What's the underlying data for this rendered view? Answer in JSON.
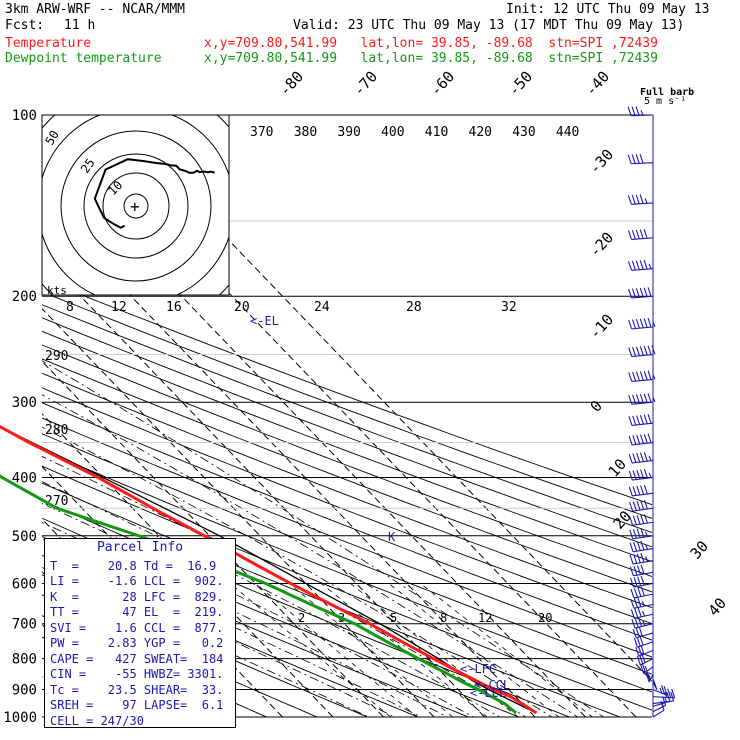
{
  "header": {
    "model": "3km ARW-WRF -- NCAR/MMM",
    "init": "Init: 12 UTC Thu 09 May 13",
    "fcst_label": "Fcst:",
    "fcst_value": "11 h",
    "valid": "Valid: 23 UTC Thu 09 May 13 (17 MDT Thu 09 May 13)",
    "temp_label": "Temperature",
    "temp_loc": "x,y=709.80,541.99   lat,lon= 39.85, -89.68  stn=SPI ,72439",
    "dew_label": "Dewpoint temperature",
    "dew_loc": "x,y=709.80,541.99   lat,lon= 39.85, -89.68  stn=SPI ,72439"
  },
  "parcel_info": {
    "title": "Parcel Info",
    "rows": [
      "T  =    20.8 Td =  16.9",
      "LI =    -1.6 LCL =  902.",
      "K  =      28 LFC =  829.",
      "TT =      47 EL  =  219.",
      "SVI =    1.6 CCL =  877.",
      "PW =    2.83 YGP =   0.2",
      "CAPE =   427 SWEAT=  184",
      "CIN =    -55 HWBZ= 3301.",
      "Tc =    23.5 SHEAR=  33.",
      "SREH =    97 LAPSE=  6.1",
      "CELL = 247/30"
    ]
  },
  "annotations": {
    "el": "<-EL",
    "lfc": "<-LFC",
    "ccl": "<-CCL",
    "lcl": "<-LCL",
    "k_marker": "K",
    "full_barb": "Full barb",
    "full_barb_unit": "5 m s⁻¹",
    "hodo_unit": "kts"
  },
  "colors": {
    "temperature": "#ff1a1a",
    "dewpoint": "#129a12",
    "parcel": "#000000",
    "wind": "#1a1ab0",
    "mixing_ratio": "#000000"
  },
  "chart_data": {
    "type": "line",
    "title": "",
    "y_axis": {
      "label": "",
      "scale": "log-pressure",
      "range_hpa": [
        1000,
        100
      ],
      "ticks": [
        100,
        200,
        300,
        400,
        500,
        600,
        700,
        800,
        900,
        1000
      ]
    },
    "isotherm_labels_c": [
      -80,
      -70,
      -60,
      -50,
      -40,
      -30,
      -20,
      -10,
      0,
      10,
      20,
      30,
      40
    ],
    "theta_labels_k": [
      370,
      380,
      390,
      400,
      410,
      420,
      430,
      440
    ],
    "theta_left_labels_k": [
      290,
      280,
      270
    ],
    "mixing_ratio_labels": [
      2,
      3,
      5,
      8,
      12,
      20
    ],
    "hodograph_speed_labels": [
      8,
      12,
      16,
      20,
      24,
      28,
      32
    ],
    "hodograph_ring_labels": [
      50,
      25,
      10
    ],
    "series": [
      {
        "name": "Temperature",
        "units": "C",
        "points": [
          [
            985,
            21
          ],
          [
            950,
            20
          ],
          [
            925,
            19
          ],
          [
            900,
            17
          ],
          [
            850,
            14
          ],
          [
            800,
            11
          ],
          [
            750,
            8
          ],
          [
            700,
            5
          ],
          [
            650,
            1
          ],
          [
            600,
            -3
          ],
          [
            550,
            -7
          ],
          [
            500,
            -11
          ],
          [
            450,
            -16
          ],
          [
            400,
            -21
          ],
          [
            350,
            -28
          ],
          [
            300,
            -35
          ],
          [
            250,
            -44
          ],
          [
            220,
            -49
          ],
          [
            205,
            -52
          ],
          [
            200,
            -53
          ],
          [
            180,
            -57
          ],
          [
            150,
            -56
          ],
          [
            130,
            -52
          ],
          [
            115,
            -48
          ],
          [
            100,
            -44
          ]
        ]
      },
      {
        "name": "Dewpoint temperature",
        "units": "C",
        "points": [
          [
            985,
            17
          ],
          [
            950,
            16.5
          ],
          [
            900,
            14
          ],
          [
            870,
            12
          ],
          [
            850,
            11
          ],
          [
            800,
            8
          ],
          [
            750,
            5
          ],
          [
            700,
            2
          ],
          [
            650,
            -3
          ],
          [
            600,
            -8
          ],
          [
            550,
            -15
          ],
          [
            500,
            -24
          ],
          [
            450,
            -35
          ],
          [
            400,
            -40
          ],
          [
            350,
            -44
          ],
          [
            300,
            -46
          ],
          [
            250,
            -53
          ],
          [
            200,
            -60
          ],
          [
            150,
            -66
          ],
          [
            120,
            -65
          ],
          [
            100,
            -65
          ]
        ]
      }
    ],
    "parcel_path": {
      "name": "",
      "points": [
        [
          985,
          21
        ],
        [
          900,
          16
        ],
        [
          870,
          14.5
        ],
        [
          800,
          12
        ],
        [
          700,
          7
        ],
        [
          600,
          0
        ],
        [
          500,
          -8
        ],
        [
          400,
          -20
        ],
        [
          300,
          -36
        ],
        [
          250,
          -46
        ],
        [
          219,
          -53
        ]
      ]
    },
    "wind_profile_kt": [
      [
        1000,
        30,
        12
      ],
      [
        980,
        35,
        14
      ],
      [
        960,
        50,
        15
      ],
      [
        950,
        70,
        18
      ],
      [
        925,
        100,
        22
      ],
      [
        900,
        140,
        25
      ],
      [
        875,
        170,
        25
      ],
      [
        850,
        190,
        24
      ],
      [
        825,
        205,
        25
      ],
      [
        800,
        215,
        27
      ],
      [
        775,
        220,
        28
      ],
      [
        750,
        225,
        30
      ],
      [
        725,
        230,
        30
      ],
      [
        700,
        235,
        32
      ],
      [
        675,
        238,
        33
      ],
      [
        650,
        240,
        35
      ],
      [
        625,
        240,
        37
      ],
      [
        600,
        242,
        38
      ],
      [
        575,
        243,
        40
      ],
      [
        550,
        245,
        42
      ],
      [
        525,
        245,
        43
      ],
      [
        500,
        247,
        45
      ],
      [
        475,
        248,
        47
      ],
      [
        450,
        248,
        48
      ],
      [
        425,
        250,
        50
      ],
      [
        400,
        250,
        52
      ],
      [
        375,
        252,
        55
      ],
      [
        350,
        252,
        58
      ],
      [
        325,
        253,
        60
      ],
      [
        300,
        255,
        62
      ],
      [
        275,
        255,
        64
      ],
      [
        250,
        255,
        66
      ],
      [
        225,
        256,
        62
      ],
      [
        200,
        257,
        58
      ],
      [
        180,
        258,
        52
      ],
      [
        160,
        258,
        48
      ],
      [
        140,
        260,
        44
      ],
      [
        120,
        262,
        40
      ],
      [
        100,
        265,
        36
      ]
    ]
  }
}
